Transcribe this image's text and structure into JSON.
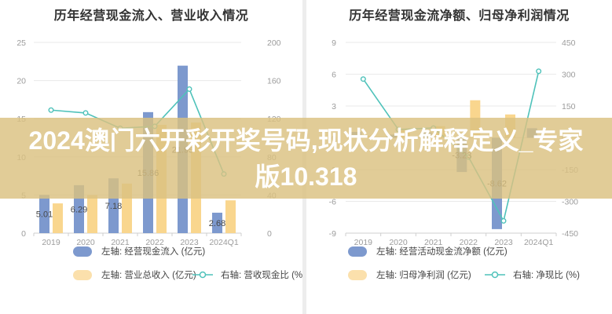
{
  "overlay": {
    "line1": "2024澳门六开彩开奖号码,现状分析解释定义_专家",
    "line2": "版10.318"
  },
  "colors": {
    "blue": "#7d99ce",
    "yellow": "#f9d68e",
    "teal": "#4fc2ba",
    "grid": "#eaeaea",
    "axis_line": "#cfcfcf",
    "axis_text": "#9c9c9c",
    "data_label_text": "#474747",
    "title_text": "#333333",
    "watermark_band": "rgba(218,193,128,0.82)",
    "watermark_text": "#ffffff"
  },
  "chart_data": [
    {
      "type": "bar+line",
      "title": "历年经营现金流入、营业收入情况",
      "categories": [
        "2019",
        "2020",
        "2021",
        "2022",
        "2023",
        "2024Q1"
      ],
      "series": [
        {
          "name": "左轴: 经营现金流入 (亿元)",
          "type": "bar",
          "axis": "left",
          "color": "blue",
          "values": [
            5.01,
            6.29,
            7.18,
            15.86,
            21.95,
            2.68
          ],
          "data_labels": [
            "5.01",
            "6.29",
            "7.18",
            "15.86",
            "21.95",
            "2.68"
          ]
        },
        {
          "name": "左轴: 营业总收入 (亿元)",
          "type": "bar",
          "axis": "left",
          "color": "yellow",
          "values": [
            3.9,
            5.0,
            6.5,
            14.2,
            14.5,
            4.3
          ],
          "data_labels": [
            null,
            null,
            null,
            null,
            null,
            null
          ]
        },
        {
          "name": "右轴: 营收现金比 (%)",
          "type": "line",
          "axis": "right",
          "color": "teal",
          "values": [
            129,
            126,
            110,
            112,
            151,
            62
          ]
        }
      ],
      "left_axis": {
        "min": 0,
        "max": 25,
        "ticks": [
          "0",
          "5",
          "10",
          "15",
          "20",
          "25"
        ]
      },
      "right_axis": {
        "min": 0,
        "max": 200,
        "ticks": [
          "0",
          "40",
          "80",
          "120",
          "160",
          "200"
        ]
      },
      "grid": true,
      "legend_position": "bottom"
    },
    {
      "type": "bar+line",
      "title": "历年经营现金流净额、归母净利润情况",
      "categories": [
        "2019",
        "2020",
        "2021",
        "2022",
        "2023",
        "2024Q1"
      ],
      "series": [
        {
          "name": "左轴: 经营活动现金流净额 (亿元)",
          "type": "bar",
          "axis": "left",
          "color": "blue",
          "values": [
            0.55,
            0.3,
            0.5,
            -3.23,
            -8.62,
            0.9
          ],
          "data_labels": [
            null,
            null,
            null,
            "-3.23",
            "-8.62",
            null
          ]
        },
        {
          "name": "左轴: 归母净利润 (亿元)",
          "type": "bar",
          "axis": "left",
          "color": "yellow",
          "values": [
            0.2,
            0.77,
            1.1,
            3.54,
            2.2,
            0.29
          ],
          "data_labels": [
            null,
            null,
            null,
            null,
            null,
            null
          ]
        },
        {
          "name": "右轴: 净现比 (%)",
          "type": "line",
          "axis": "right",
          "color": "teal",
          "values": [
            277,
            39,
            46,
            -91,
            -392,
            314
          ]
        }
      ],
      "left_axis": {
        "min": -9,
        "max": 9,
        "ticks": [
          "-9",
          "-6",
          "-3",
          "0",
          "3",
          "6",
          "9"
        ]
      },
      "right_axis": {
        "min": -450,
        "max": 450,
        "ticks": [
          "-450",
          "-300",
          "-150",
          "0",
          "150",
          "300",
          "450"
        ]
      },
      "grid": true,
      "legend_position": "bottom"
    }
  ]
}
